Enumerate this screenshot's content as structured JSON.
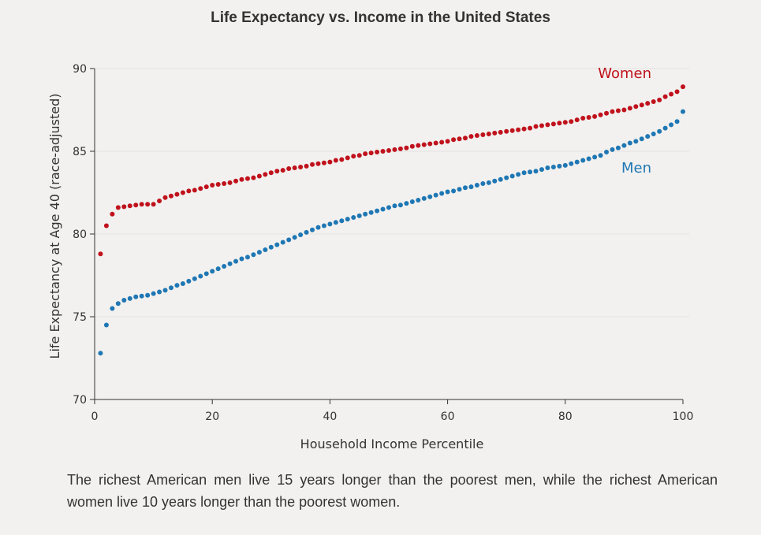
{
  "title": "Life Expectancy vs. Income in the United States",
  "caption": "The richest American men live 15 years longer than the poorest men, while the richest American women live 10 years longer than the poorest women.",
  "chart_data": {
    "type": "scatter",
    "title": "Life Expectancy vs. Income in the United States",
    "xlabel": "Household Income Percentile",
    "ylabel": "Life Expectancy at Age 40 (race-adjusted)",
    "xlim": [
      0,
      100
    ],
    "ylim": [
      70,
      90
    ],
    "xticks": [
      0,
      20,
      40,
      60,
      80,
      100
    ],
    "yticks": [
      70,
      75,
      80,
      85,
      90
    ],
    "grid": "horizontal",
    "x": [
      1,
      2,
      3,
      4,
      5,
      6,
      7,
      8,
      9,
      10,
      11,
      12,
      13,
      14,
      15,
      16,
      17,
      18,
      19,
      20,
      21,
      22,
      23,
      24,
      25,
      26,
      27,
      28,
      29,
      30,
      31,
      32,
      33,
      34,
      35,
      36,
      37,
      38,
      39,
      40,
      41,
      42,
      43,
      44,
      45,
      46,
      47,
      48,
      49,
      50,
      51,
      52,
      53,
      54,
      55,
      56,
      57,
      58,
      59,
      60,
      61,
      62,
      63,
      64,
      65,
      66,
      67,
      68,
      69,
      70,
      71,
      72,
      73,
      74,
      75,
      76,
      77,
      78,
      79,
      80,
      81,
      82,
      83,
      84,
      85,
      86,
      87,
      88,
      89,
      90,
      91,
      92,
      93,
      94,
      95,
      96,
      97,
      98,
      99,
      100
    ],
    "series": [
      {
        "name": "Women",
        "color": "#c0121c",
        "values": [
          78.8,
          80.5,
          81.2,
          81.6,
          81.65,
          81.7,
          81.75,
          81.8,
          81.8,
          81.8,
          82.0,
          82.2,
          82.3,
          82.4,
          82.5,
          82.6,
          82.65,
          82.75,
          82.85,
          82.95,
          83.0,
          83.05,
          83.1,
          83.2,
          83.3,
          83.35,
          83.4,
          83.5,
          83.6,
          83.7,
          83.8,
          83.85,
          83.95,
          84.0,
          84.05,
          84.1,
          84.2,
          84.25,
          84.3,
          84.35,
          84.45,
          84.5,
          84.6,
          84.7,
          84.75,
          84.85,
          84.9,
          84.95,
          85.0,
          85.05,
          85.1,
          85.15,
          85.2,
          85.3,
          85.35,
          85.4,
          85.45,
          85.5,
          85.55,
          85.6,
          85.7,
          85.75,
          85.8,
          85.9,
          85.95,
          86.0,
          86.05,
          86.1,
          86.15,
          86.2,
          86.25,
          86.3,
          86.35,
          86.4,
          86.5,
          86.55,
          86.6,
          86.65,
          86.7,
          86.75,
          86.8,
          86.9,
          87.0,
          87.05,
          87.1,
          87.2,
          87.3,
          87.4,
          87.45,
          87.5,
          87.6,
          87.7,
          87.8,
          87.9,
          88.0,
          88.1,
          88.3,
          88.45,
          88.6,
          88.9
        ]
      },
      {
        "name": "Men",
        "color": "#1f77b4",
        "values": [
          72.8,
          74.5,
          75.5,
          75.8,
          76.0,
          76.1,
          76.2,
          76.25,
          76.3,
          76.4,
          76.5,
          76.6,
          76.75,
          76.9,
          77.0,
          77.15,
          77.3,
          77.45,
          77.6,
          77.75,
          77.9,
          78.05,
          78.2,
          78.35,
          78.5,
          78.6,
          78.75,
          78.9,
          79.05,
          79.2,
          79.35,
          79.5,
          79.65,
          79.8,
          79.95,
          80.1,
          80.25,
          80.4,
          80.5,
          80.6,
          80.7,
          80.8,
          80.9,
          81.0,
          81.1,
          81.2,
          81.3,
          81.4,
          81.5,
          81.6,
          81.7,
          81.75,
          81.85,
          81.95,
          82.05,
          82.15,
          82.25,
          82.35,
          82.45,
          82.55,
          82.6,
          82.7,
          82.8,
          82.85,
          82.95,
          83.05,
          83.1,
          83.2,
          83.3,
          83.4,
          83.5,
          83.6,
          83.7,
          83.75,
          83.8,
          83.9,
          84.0,
          84.05,
          84.1,
          84.15,
          84.25,
          84.35,
          84.45,
          84.55,
          84.65,
          84.75,
          84.95,
          85.1,
          85.2,
          85.35,
          85.5,
          85.6,
          85.75,
          85.9,
          86.05,
          86.2,
          86.4,
          86.6,
          86.8,
          87.4
        ]
      }
    ]
  }
}
